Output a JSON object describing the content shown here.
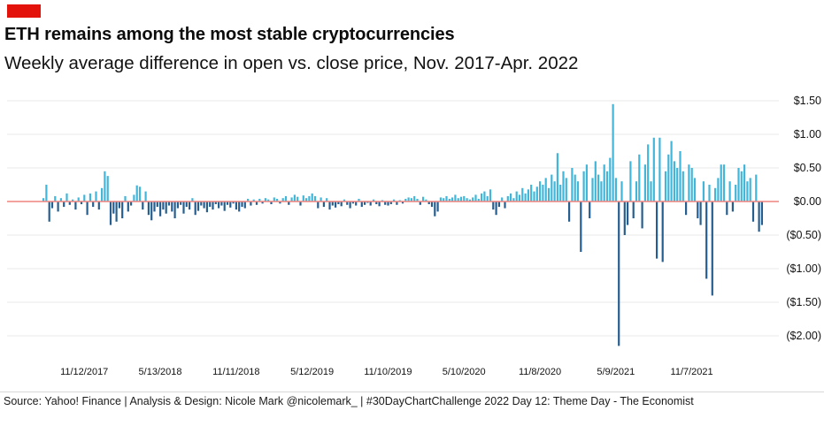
{
  "colors": {
    "tag_red": "#e3120b",
    "positive": "#41b6d9",
    "negative": "#265f8f",
    "zero_line": "#f0837e",
    "gridline": "#eaeaea",
    "footer_divider": "#d8d8d8"
  },
  "footer": {
    "source": "Source: Yahoo! Finance | Analysis & Design: Nicole Mark @nicolemark_ | #30DayChartChallenge 2022 Day 12: Theme Day - The Economist"
  },
  "chart_data": {
    "type": "bar",
    "title": "ETH remains among the most stable cryptocurrencies",
    "subtitle": "Weekly average difference in open vs. close price, Nov. 2017-Apr. 2022",
    "unit": "USD",
    "grid": "horizontal",
    "legend": "none",
    "y_axis_side": "right",
    "y_tick_labels": [
      "$1.50",
      "$1.00",
      "$0.50",
      "$0.00",
      "($0.50)",
      "($1.00)",
      "($1.50)",
      "($2.00)"
    ],
    "y_tick_values": [
      1.5,
      1.0,
      0.5,
      0.0,
      -0.5,
      -1.0,
      -1.5,
      -2.0
    ],
    "ylim": [
      -2.3,
      1.6
    ],
    "x_tick_labels": [
      "11/12/2017",
      "5/13/2018",
      "11/11/2018",
      "5/12/2019",
      "11/10/2019",
      "5/10/2020",
      "11/8/2020",
      "5/9/2021",
      "11/7/2021"
    ],
    "x_tick_indices": [
      14,
      40,
      66,
      92,
      118,
      144,
      170,
      196,
      222
    ],
    "x_start_week": "8/6/2017",
    "x_frequency": "weekly",
    "values": [
      0.05,
      0.25,
      -0.3,
      -0.1,
      0.08,
      -0.15,
      0.05,
      -0.08,
      0.12,
      -0.05,
      0.03,
      -0.12,
      0.06,
      -0.04,
      0.1,
      -0.2,
      0.12,
      -0.08,
      0.15,
      -0.12,
      0.2,
      0.45,
      0.38,
      -0.35,
      -0.18,
      -0.3,
      -0.1,
      -0.25,
      0.08,
      -0.15,
      -0.06,
      0.1,
      0.24,
      0.22,
      -0.12,
      0.15,
      -0.2,
      -0.28,
      -0.15,
      -0.08,
      -0.22,
      -0.12,
      -0.18,
      -0.06,
      -0.15,
      -0.25,
      -0.1,
      -0.05,
      -0.18,
      -0.08,
      -0.12,
      0.05,
      -0.2,
      -0.14,
      -0.06,
      -0.1,
      -0.16,
      -0.08,
      -0.12,
      -0.04,
      -0.1,
      -0.06,
      -0.14,
      -0.05,
      -0.09,
      -0.03,
      -0.12,
      -0.15,
      -0.08,
      -0.1,
      0.04,
      -0.06,
      0.03,
      -0.05,
      0.04,
      -0.03,
      0.05,
      0.03,
      -0.04,
      0.06,
      0.04,
      -0.03,
      0.05,
      0.08,
      -0.05,
      0.06,
      0.1,
      0.07,
      -0.06,
      0.09,
      0.05,
      0.08,
      0.12,
      0.08,
      -0.1,
      0.06,
      -0.08,
      0.05,
      -0.12,
      -0.06,
      -0.09,
      -0.04,
      -0.07,
      0.03,
      -0.05,
      -0.1,
      -0.03,
      -0.06,
      0.04,
      -0.08,
      -0.05,
      -0.02,
      -0.06,
      0.03,
      -0.04,
      -0.07,
      0.02,
      -0.05,
      -0.06,
      -0.04,
      0.03,
      -0.05,
      0.02,
      -0.03,
      0.04,
      0.06,
      0.05,
      0.08,
      0.04,
      -0.05,
      0.07,
      0.03,
      -0.04,
      -0.08,
      -0.22,
      -0.15,
      0.06,
      0.05,
      0.08,
      0.04,
      0.06,
      0.1,
      0.05,
      0.07,
      0.08,
      0.05,
      0.03,
      0.06,
      0.1,
      0.04,
      0.12,
      0.15,
      0.08,
      0.18,
      -0.12,
      -0.2,
      -0.08,
      0.06,
      -0.1,
      0.08,
      0.12,
      0.05,
      0.15,
      0.1,
      0.2,
      0.12,
      0.18,
      0.25,
      0.15,
      0.22,
      0.3,
      0.25,
      0.35,
      0.2,
      0.4,
      0.3,
      0.72,
      0.25,
      0.45,
      0.35,
      -0.3,
      0.5,
      0.4,
      0.3,
      -0.75,
      0.45,
      0.55,
      -0.25,
      0.35,
      0.6,
      0.4,
      0.3,
      0.55,
      0.45,
      0.65,
      1.45,
      0.35,
      -2.15,
      0.3,
      -0.5,
      -0.35,
      0.6,
      -0.25,
      0.3,
      0.7,
      -0.4,
      0.55,
      0.85,
      0.3,
      0.95,
      -0.85,
      0.95,
      -0.9,
      0.45,
      0.7,
      0.9,
      0.6,
      0.5,
      0.75,
      0.45,
      -0.2,
      0.55,
      0.5,
      0.35,
      -0.25,
      -0.35,
      0.3,
      -1.15,
      0.25,
      -1.4,
      0.2,
      0.35,
      0.55,
      0.55,
      -0.2,
      0.3,
      -0.15,
      0.25,
      0.5,
      0.45,
      0.55,
      0.3,
      0.35,
      -0.3,
      0.4,
      -0.45,
      -0.35
    ]
  }
}
